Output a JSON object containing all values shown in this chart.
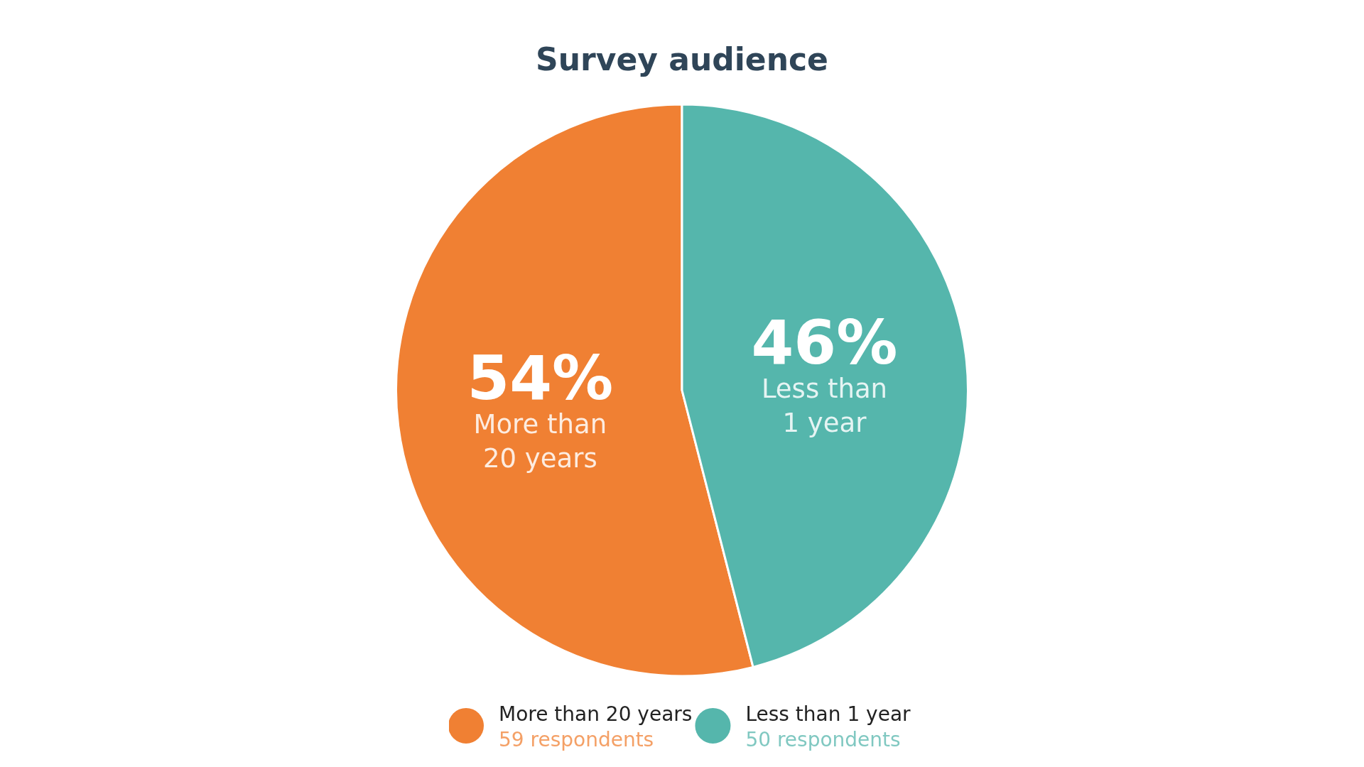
{
  "chart_data": {
    "type": "pie",
    "title": "Survey audience",
    "categories": [
      "More than 20 years",
      "Less than 1 year"
    ],
    "values": [
      54,
      46
    ],
    "value_labels": [
      "54%",
      "46%"
    ],
    "colors": [
      "#f08033",
      "#55b6ac"
    ],
    "annotations": [
      "59 respondents",
      "50 respondents"
    ],
    "legend": "bottom"
  }
}
